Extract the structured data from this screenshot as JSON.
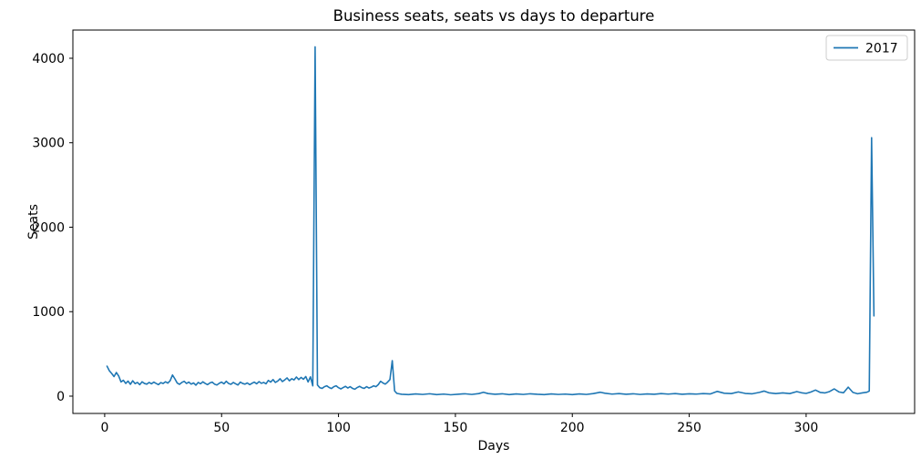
{
  "chart_data": {
    "type": "line",
    "title": "Business seats, seats vs days to departure",
    "xlabel": "Days",
    "ylabel": "Seats",
    "xticks": [
      0,
      50,
      100,
      150,
      200,
      250,
      300
    ],
    "yticks": [
      0,
      1000,
      2000,
      3000,
      4000
    ],
    "xlim": [
      -13.6,
      346.4
    ],
    "ylim": [
      -205,
      4334
    ],
    "grid": false,
    "legend_position": "upper right",
    "series": [
      {
        "name": "2017",
        "color": "#1f77b4",
        "points": [
          [
            1,
            355
          ],
          [
            2,
            300
          ],
          [
            3,
            268
          ],
          [
            4,
            232
          ],
          [
            5,
            280
          ],
          [
            6,
            238
          ],
          [
            7,
            168
          ],
          [
            8,
            188
          ],
          [
            9,
            150
          ],
          [
            10,
            178
          ],
          [
            11,
            140
          ],
          [
            12,
            182
          ],
          [
            13,
            148
          ],
          [
            14,
            162
          ],
          [
            15,
            136
          ],
          [
            16,
            170
          ],
          [
            17,
            150
          ],
          [
            18,
            142
          ],
          [
            19,
            162
          ],
          [
            20,
            146
          ],
          [
            21,
            166
          ],
          [
            22,
            150
          ],
          [
            23,
            136
          ],
          [
            24,
            160
          ],
          [
            25,
            150
          ],
          [
            26,
            170
          ],
          [
            27,
            154
          ],
          [
            28,
            182
          ],
          [
            29,
            250
          ],
          [
            30,
            206
          ],
          [
            31,
            156
          ],
          [
            32,
            140
          ],
          [
            33,
            162
          ],
          [
            34,
            176
          ],
          [
            35,
            150
          ],
          [
            36,
            166
          ],
          [
            37,
            142
          ],
          [
            38,
            156
          ],
          [
            39,
            130
          ],
          [
            40,
            162
          ],
          [
            41,
            146
          ],
          [
            42,
            170
          ],
          [
            43,
            150
          ],
          [
            44,
            136
          ],
          [
            45,
            156
          ],
          [
            46,
            166
          ],
          [
            47,
            142
          ],
          [
            48,
            132
          ],
          [
            49,
            152
          ],
          [
            50,
            166
          ],
          [
            51,
            146
          ],
          [
            52,
            176
          ],
          [
            53,
            150
          ],
          [
            54,
            140
          ],
          [
            55,
            162
          ],
          [
            56,
            146
          ],
          [
            57,
            132
          ],
          [
            58,
            166
          ],
          [
            59,
            150
          ],
          [
            60,
            142
          ],
          [
            61,
            156
          ],
          [
            62,
            136
          ],
          [
            63,
            152
          ],
          [
            64,
            166
          ],
          [
            65,
            146
          ],
          [
            66,
            172
          ],
          [
            67,
            152
          ],
          [
            68,
            162
          ],
          [
            69,
            146
          ],
          [
            70,
            186
          ],
          [
            71,
            166
          ],
          [
            72,
            196
          ],
          [
            73,
            162
          ],
          [
            74,
            178
          ],
          [
            75,
            206
          ],
          [
            76,
            172
          ],
          [
            77,
            192
          ],
          [
            78,
            216
          ],
          [
            79,
            182
          ],
          [
            80,
            206
          ],
          [
            81,
            192
          ],
          [
            82,
            226
          ],
          [
            83,
            196
          ],
          [
            84,
            222
          ],
          [
            85,
            200
          ],
          [
            86,
            232
          ],
          [
            87,
            168
          ],
          [
            88,
            228
          ],
          [
            89,
            122
          ],
          [
            90,
            4135
          ],
          [
            91,
            132
          ],
          [
            92,
            100
          ],
          [
            93,
            92
          ],
          [
            94,
            112
          ],
          [
            95,
            122
          ],
          [
            96,
            102
          ],
          [
            97,
            90
          ],
          [
            98,
            112
          ],
          [
            99,
            122
          ],
          [
            100,
            100
          ],
          [
            101,
            86
          ],
          [
            102,
            102
          ],
          [
            103,
            116
          ],
          [
            104,
            96
          ],
          [
            105,
            112
          ],
          [
            106,
            92
          ],
          [
            107,
            82
          ],
          [
            108,
            102
          ],
          [
            109,
            116
          ],
          [
            110,
            100
          ],
          [
            111,
            92
          ],
          [
            112,
            112
          ],
          [
            113,
            96
          ],
          [
            114,
            106
          ],
          [
            115,
            122
          ],
          [
            116,
            112
          ],
          [
            117,
            136
          ],
          [
            118,
            176
          ],
          [
            119,
            156
          ],
          [
            120,
            142
          ],
          [
            121,
            166
          ],
          [
            122,
            196
          ],
          [
            123,
            420
          ],
          [
            124,
            62
          ],
          [
            125,
            32
          ],
          [
            127,
            22
          ],
          [
            130,
            18
          ],
          [
            133,
            26
          ],
          [
            136,
            20
          ],
          [
            139,
            28
          ],
          [
            142,
            18
          ],
          [
            145,
            24
          ],
          [
            148,
            16
          ],
          [
            151,
            22
          ],
          [
            154,
            28
          ],
          [
            157,
            20
          ],
          [
            160,
            30
          ],
          [
            162,
            46
          ],
          [
            164,
            30
          ],
          [
            167,
            22
          ],
          [
            170,
            28
          ],
          [
            173,
            18
          ],
          [
            176,
            26
          ],
          [
            179,
            20
          ],
          [
            182,
            28
          ],
          [
            185,
            22
          ],
          [
            188,
            18
          ],
          [
            191,
            26
          ],
          [
            194,
            20
          ],
          [
            197,
            24
          ],
          [
            200,
            18
          ],
          [
            203,
            26
          ],
          [
            206,
            20
          ],
          [
            209,
            30
          ],
          [
            212,
            46
          ],
          [
            214,
            34
          ],
          [
            217,
            24
          ],
          [
            220,
            30
          ],
          [
            223,
            22
          ],
          [
            226,
            28
          ],
          [
            229,
            20
          ],
          [
            232,
            26
          ],
          [
            235,
            22
          ],
          [
            238,
            30
          ],
          [
            241,
            24
          ],
          [
            244,
            30
          ],
          [
            247,
            22
          ],
          [
            250,
            28
          ],
          [
            253,
            24
          ],
          [
            256,
            30
          ],
          [
            259,
            26
          ],
          [
            262,
            56
          ],
          [
            265,
            34
          ],
          [
            268,
            30
          ],
          [
            271,
            50
          ],
          [
            274,
            32
          ],
          [
            277,
            28
          ],
          [
            280,
            44
          ],
          [
            282,
            60
          ],
          [
            284,
            40
          ],
          [
            287,
            30
          ],
          [
            290,
            38
          ],
          [
            293,
            30
          ],
          [
            296,
            54
          ],
          [
            298,
            40
          ],
          [
            300,
            32
          ],
          [
            302,
            48
          ],
          [
            304,
            72
          ],
          [
            306,
            44
          ],
          [
            308,
            38
          ],
          [
            310,
            54
          ],
          [
            312,
            86
          ],
          [
            314,
            50
          ],
          [
            316,
            40
          ],
          [
            318,
            106
          ],
          [
            320,
            44
          ],
          [
            322,
            28
          ],
          [
            324,
            38
          ],
          [
            326,
            46
          ],
          [
            327,
            60
          ],
          [
            328,
            3060
          ],
          [
            329,
            950
          ]
        ]
      }
    ]
  }
}
